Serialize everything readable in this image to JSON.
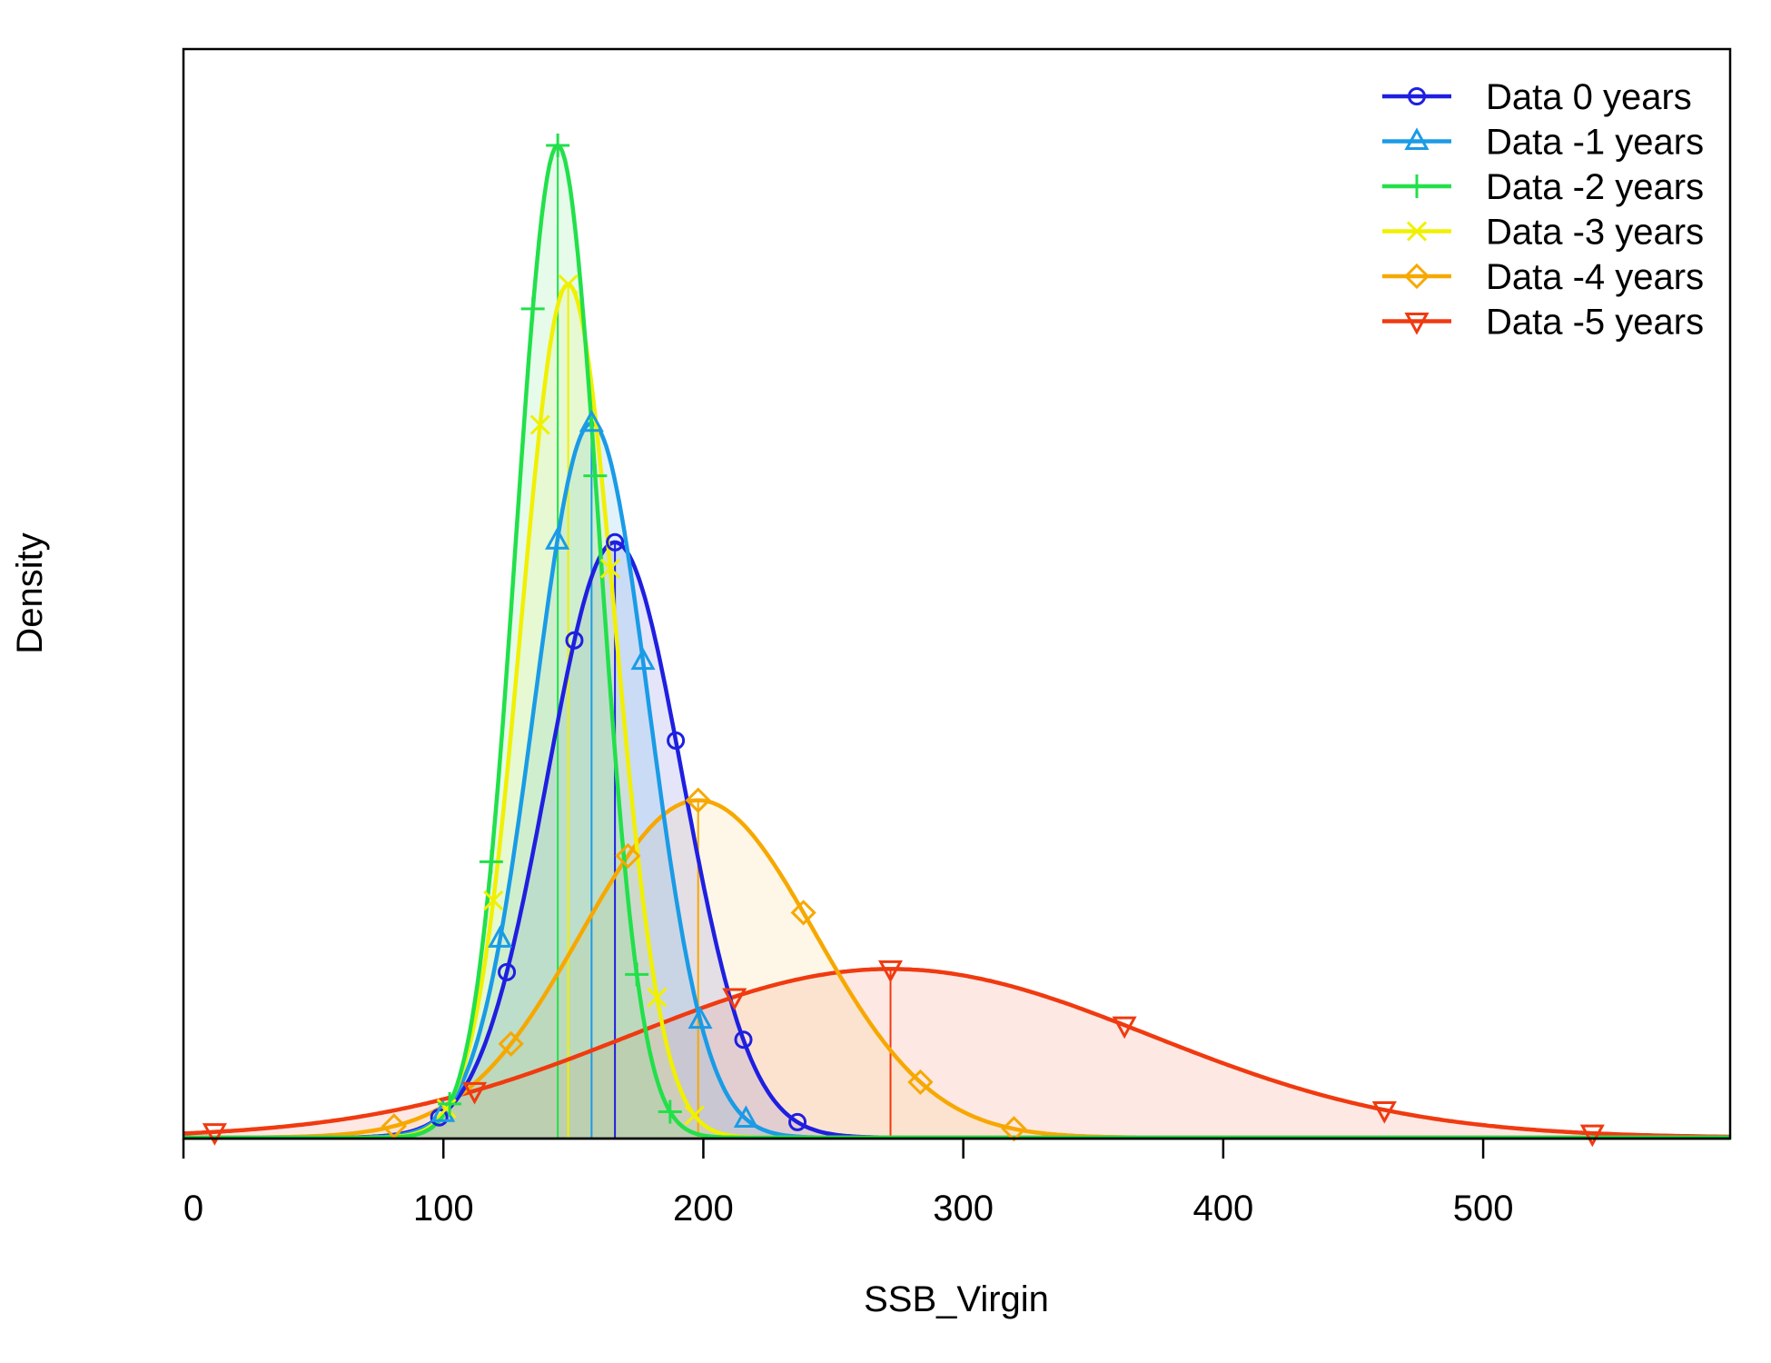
{
  "chart_data": {
    "type": "line",
    "xlabel": "SSB_Virgin",
    "ylabel": "Density",
    "xlim": [
      0,
      595
    ],
    "ylim": [
      0,
      1.0
    ],
    "y_tick_labels_shown": false,
    "x_ticks": [
      0,
      100,
      200,
      300,
      400,
      500
    ],
    "x_tick_labels": [
      "0",
      "100",
      "200",
      "300",
      "400",
      "500"
    ],
    "legend_position": "top-right",
    "series": [
      {
        "name": "Data 0 years",
        "color": "#1F1FE0",
        "marker": "circle",
        "mean": 166,
        "sd": 26,
        "peak": 0.6,
        "fill": "rgba(70,70,220,0.14)"
      },
      {
        "name": "Data -1 years",
        "color": "#1A9BE6",
        "marker": "triangle-up",
        "mean": 157,
        "sd": 22,
        "peak": 0.72,
        "fill": "rgba(40,160,230,0.14)"
      },
      {
        "name": "Data -2 years",
        "color": "#22E04A",
        "marker": "plus",
        "mean": 144,
        "sd": 16,
        "peak": 1.0,
        "fill": "rgba(60,220,90,0.12)"
      },
      {
        "name": "Data -3 years",
        "color": "#F0F000",
        "marker": "cross",
        "mean": 148,
        "sd": 18,
        "peak": 0.86,
        "fill": "rgba(245,240,60,0.14)"
      },
      {
        "name": "Data -4 years",
        "color": "#F7A800",
        "marker": "diamond",
        "mean": 198,
        "sd": 45,
        "peak": 0.34,
        "fill": "rgba(245,190,70,0.13)"
      },
      {
        "name": "Data -5 years",
        "color": "#F03A10",
        "marker": "triangle-down",
        "mean": 272,
        "sd": 100,
        "peak": 0.17,
        "fill": "rgba(240,110,90,0.16)"
      }
    ]
  }
}
